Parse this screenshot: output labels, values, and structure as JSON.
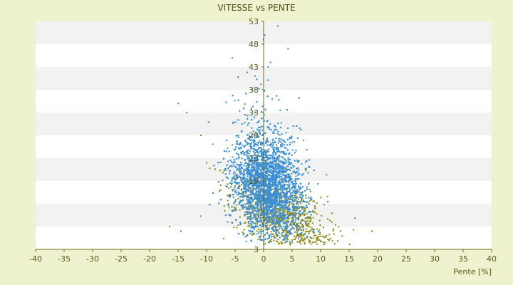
{
  "chart_data": {
    "type": "scatter",
    "title": "VITESSE vs PENTE",
    "xlabel": "Pente [%]",
    "ylabel": "",
    "xlim": [
      -40,
      40
    ],
    "ylim": [
      3,
      53
    ],
    "x_ticks": [
      -40,
      -35,
      -30,
      -25,
      -20,
      -15,
      -10,
      -5,
      0,
      5,
      10,
      15,
      20,
      25,
      30,
      35,
      40
    ],
    "y_ticks": [
      3,
      8,
      13,
      18,
      23,
      28,
      33,
      38,
      43,
      48,
      53
    ],
    "y_tick_labels_shown": [
      3,
      18,
      23,
      28,
      33,
      38,
      43,
      48,
      53
    ],
    "grid": "horizontal alternating bands",
    "legend": "none",
    "colors": {
      "page_bg": "#eef2cf",
      "band_light": "#ffffff",
      "band_dark": "#f2f2f2",
      "axis": "#6b6b1f",
      "text": "#5a5a14",
      "series_blue": "#3a8fd6",
      "series_olive": "#8a8a10"
    },
    "series": [
      {
        "color": "#3a8fd6",
        "marker": "small dot",
        "approx_center": [
          0.5,
          17
        ],
        "approx_x_range": [
          -15,
          14
        ],
        "approx_y_range": [
          4,
          52
        ],
        "points": [
          [
            2.5,
            52
          ],
          [
            0.2,
            50
          ],
          [
            0,
            49
          ],
          [
            -5.5,
            45
          ],
          [
            1.2,
            44
          ],
          [
            4.3,
            47
          ],
          [
            -1.5,
            41
          ],
          [
            0.8,
            43
          ],
          [
            -2,
            38
          ],
          [
            1.5,
            36
          ]
        ]
      },
      {
        "color": "#8a8a10",
        "marker": "small dot",
        "approx_center": [
          3,
          11
        ],
        "approx_x_range": [
          -17,
          19
        ],
        "approx_y_range": [
          4,
          35
        ],
        "points": [
          [
            -15,
            35
          ],
          [
            -16.5,
            8
          ],
          [
            -14.5,
            7
          ],
          [
            19,
            7
          ],
          [
            13.5,
            7
          ],
          [
            -13.5,
            33
          ],
          [
            -11,
            28
          ],
          [
            9,
            12
          ],
          [
            12,
            9
          ],
          [
            -10,
            22
          ]
        ]
      }
    ]
  }
}
